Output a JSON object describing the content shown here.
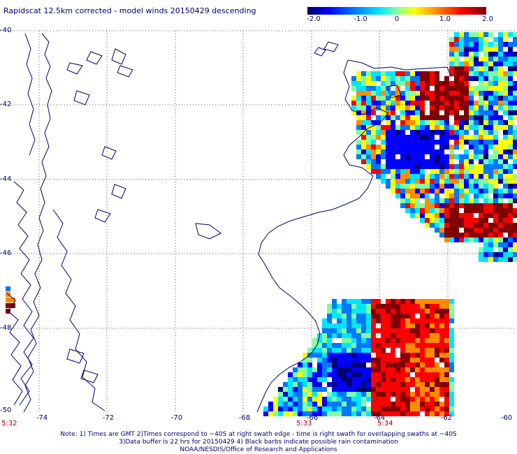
{
  "title": "Rapidscat 12.5km corrected - model winds 20150429 descending",
  "colorbar": {
    "ticks": [
      "-2.0",
      "-1.0",
      "0",
      "1.0",
      "2.0"
    ],
    "colors": [
      "#00006e",
      "#0000ff",
      "#0078ff",
      "#00e6ff",
      "#7fffa0",
      "#ffff00",
      "#ff8c00",
      "#ff0000",
      "#800000"
    ]
  },
  "lat_labels": [
    "-40",
    "-42",
    "-44",
    "-46",
    "-48",
    "-50"
  ],
  "lon_labels": [
    "-74",
    "-72",
    "-70",
    "-68",
    "-66",
    "-64",
    "-62",
    "-60"
  ],
  "time_labels": [
    "5:32",
    "5:33",
    "5:34"
  ],
  "notes": [
    "Note: 1) Times are GMT 2)Times correspond to ~40S at right swath edge - time is right swath for overlapping swaths at ~40S",
    "3)Data buffer is 22 hrs for 20150429 4) Black barbs indicate possible rain contamination",
    "NOAA/NESDIS/Office of Research and Applications"
  ],
  "colors": {
    "coast": "#00006e",
    "grid": "#555555",
    "text": "#00006e",
    "time": "#a00000"
  }
}
